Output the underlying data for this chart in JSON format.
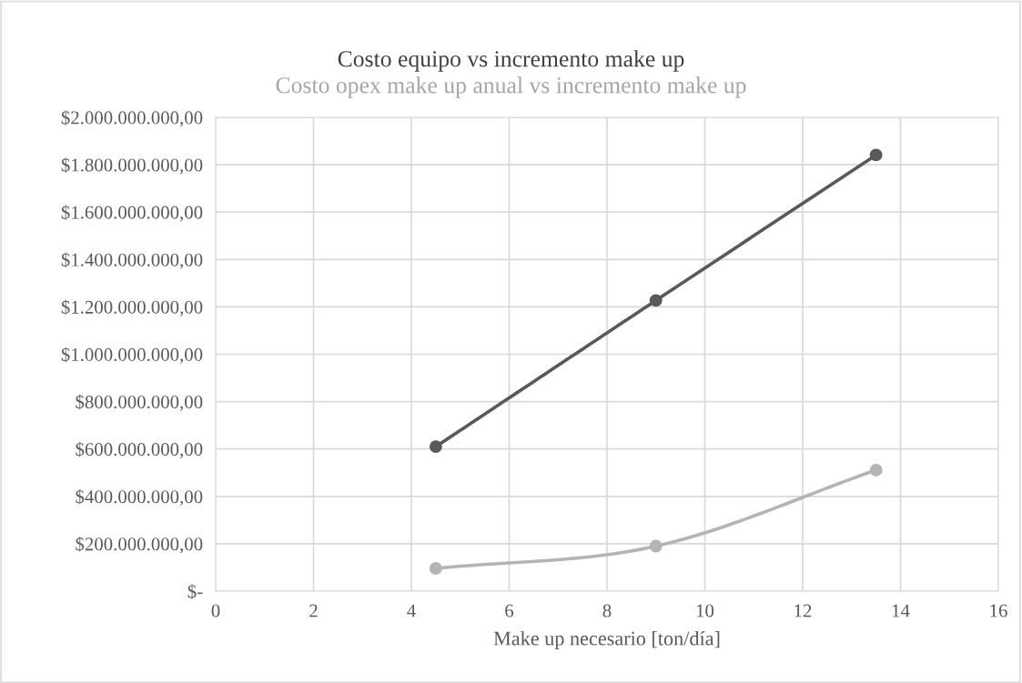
{
  "chart_data": {
    "type": "line",
    "title": "Costo equipo vs incremento make up",
    "subtitle": "Costo opex make up anual vs incremento make up",
    "xlabel": "Make up necesario [ton/día]",
    "x": [
      4.5,
      9,
      13.5
    ],
    "series": [
      {
        "color": "#595959",
        "values": [
          610000000,
          1227000000,
          1841000000
        ]
      },
      {
        "color": "#b4b4b4",
        "values": [
          96000000,
          190000000,
          511000000
        ]
      }
    ],
    "xlim": [
      0,
      16
    ],
    "xticks": [
      0,
      2,
      4,
      6,
      8,
      10,
      12,
      14,
      16
    ],
    "ylim": [
      0,
      2000000000
    ],
    "yticks": [
      {
        "value": 0,
        "label": "$-"
      },
      {
        "value": 200000000,
        "label": "$200.000.000,00"
      },
      {
        "value": 400000000,
        "label": "$400.000.000,00"
      },
      {
        "value": 600000000,
        "label": "$600.000.000,00"
      },
      {
        "value": 800000000,
        "label": "$800.000.000,00"
      },
      {
        "value": 1000000000,
        "label": "$1.000.000.000,00"
      },
      {
        "value": 1200000000,
        "label": "$1.200.000.000,00"
      },
      {
        "value": 1400000000,
        "label": "$1.400.000.000,00"
      },
      {
        "value": 1600000000,
        "label": "$1.600.000.000,00"
      },
      {
        "value": 1800000000,
        "label": "$1.800.000.000,00"
      },
      {
        "value": 2000000000,
        "label": "$2.000.000.000,00"
      }
    ],
    "grid": true,
    "marker": "circle",
    "line_style": "solid"
  }
}
